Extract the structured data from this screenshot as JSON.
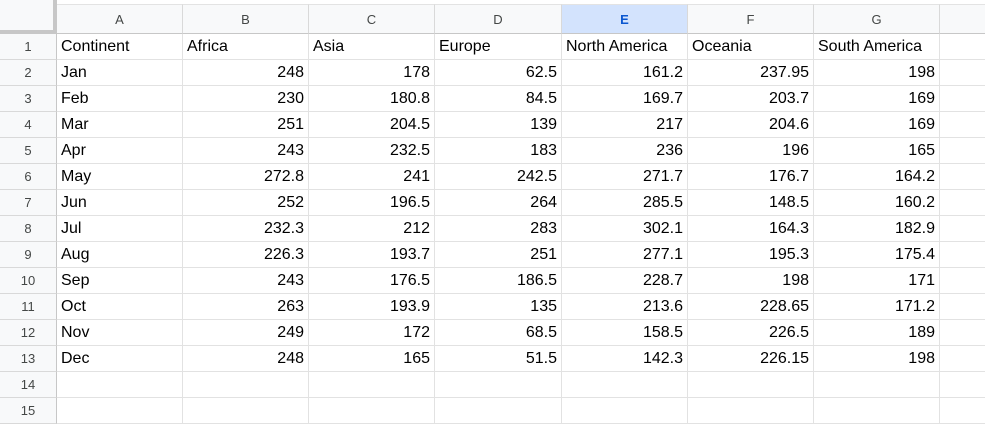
{
  "columns": [
    "A",
    "B",
    "C",
    "D",
    "E",
    "F",
    "G"
  ],
  "selected_column": "E",
  "rows": [
    [
      "Continent",
      "Africa",
      "Asia",
      "Europe",
      "North America",
      "Oceania",
      "South America"
    ],
    [
      "Jan",
      "248",
      "178",
      "62.5",
      "161.2",
      "237.95",
      "198"
    ],
    [
      "Feb",
      "230",
      "180.8",
      "84.5",
      "169.7",
      "203.7",
      "169"
    ],
    [
      "Mar",
      "251",
      "204.5",
      "139",
      "217",
      "204.6",
      "169"
    ],
    [
      "Apr",
      "243",
      "232.5",
      "183",
      "236",
      "196",
      "165"
    ],
    [
      "May",
      "272.8",
      "241",
      "242.5",
      "271.7",
      "176.7",
      "164.2"
    ],
    [
      "Jun",
      "252",
      "196.5",
      "264",
      "285.5",
      "148.5",
      "160.2"
    ],
    [
      "Jul",
      "232.3",
      "212",
      "283",
      "302.1",
      "164.3",
      "182.9"
    ],
    [
      "Aug",
      "226.3",
      "193.7",
      "251",
      "277.1",
      "195.3",
      "175.4"
    ],
    [
      "Sep",
      "243",
      "176.5",
      "186.5",
      "228.7",
      "198",
      "171"
    ],
    [
      "Oct",
      "263",
      "193.9",
      "135",
      "213.6",
      "228.65",
      "171.2"
    ],
    [
      "Nov",
      "249",
      "172",
      "68.5",
      "158.5",
      "226.5",
      "189"
    ],
    [
      "Dec",
      "248",
      "165",
      "51.5",
      "142.3",
      "226.15",
      "198"
    ],
    [
      "",
      "",
      "",
      "",
      "",
      "",
      ""
    ],
    [
      "",
      "",
      "",
      "",
      "",
      "",
      ""
    ]
  ],
  "row_numbers": [
    "1",
    "2",
    "3",
    "4",
    "5",
    "6",
    "7",
    "8",
    "9",
    "10",
    "11",
    "12",
    "13",
    "14",
    "15"
  ]
}
